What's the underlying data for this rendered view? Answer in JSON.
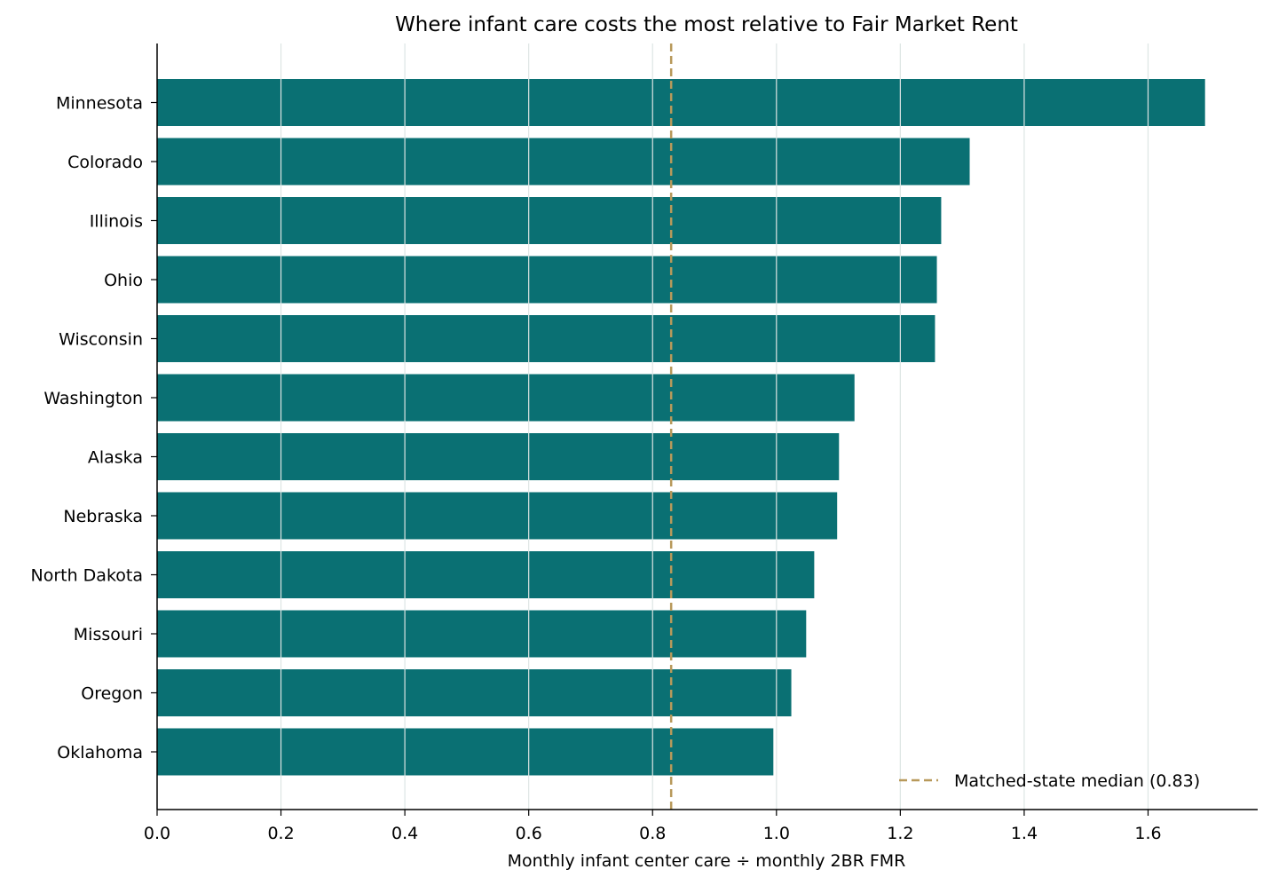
{
  "chart_data": {
    "type": "bar",
    "orientation": "horizontal",
    "title": "Where infant care costs the most relative to Fair Market Rent",
    "xlabel": "Monthly infant center care ÷ monthly 2BR FMR",
    "ylabel": "",
    "xlim": [
      0,
      1.777
    ],
    "xticks": [
      "0.0",
      "0.2",
      "0.4",
      "0.6",
      "0.8",
      "1.0",
      "1.2",
      "1.4",
      "1.6"
    ],
    "grid": "vertical",
    "categories": [
      "Minnesota",
      "Colorado",
      "Illinois",
      "Ohio",
      "Wisconsin",
      "Washington",
      "Alaska",
      "Nebraska",
      "North Dakota",
      "Missouri",
      "Oregon",
      "Oklahoma"
    ],
    "values": [
      1.692,
      1.312,
      1.266,
      1.259,
      1.256,
      1.126,
      1.101,
      1.098,
      1.061,
      1.048,
      1.024,
      0.995
    ],
    "bar_color": "#0a7073",
    "reference_line": {
      "value": 0.83,
      "color": "#b8995a",
      "style": "dashed",
      "label": "Matched-state median (0.83)"
    },
    "legend_position": "bottom-right"
  }
}
